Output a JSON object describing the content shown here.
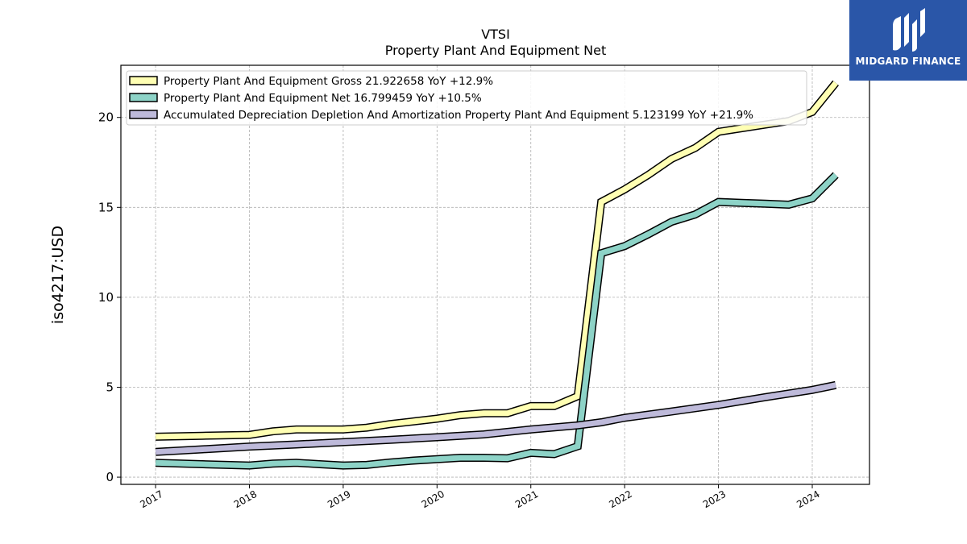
{
  "logo": {
    "text": "MIDGARD FINANCE",
    "icon": "midgard-logo-icon",
    "background": "#2a56a8"
  },
  "chart_data": {
    "type": "line",
    "title": "VTSI",
    "subtitle": "Property Plant And Equipment Net",
    "ylabel": "iso4217:USD",
    "xlabel": "",
    "ylim": [
      -0.4,
      22.9
    ],
    "xlim": [
      2016.63,
      2024.61
    ],
    "yticks": [
      0,
      5,
      10,
      15,
      20
    ],
    "xticks": [
      2017,
      2018,
      2019,
      2020,
      2021,
      2022,
      2023,
      2024
    ],
    "grid": true,
    "legend_position": "top-left",
    "series": [
      {
        "name": "Property Plant And Equipment Gross",
        "legend_label": "Property Plant And Equipment Gross  21.922658 YoY +12.9%",
        "color": "#ffffb3",
        "x": [
          2017.0,
          2017.5,
          2018.0,
          2018.25,
          2018.5,
          2018.75,
          2019.0,
          2019.25,
          2019.5,
          2019.75,
          2020.0,
          2020.25,
          2020.5,
          2020.75,
          2021.0,
          2021.25,
          2021.5,
          2021.75,
          2022.0,
          2022.25,
          2022.5,
          2022.75,
          2023.0,
          2023.25,
          2023.5,
          2023.75,
          2024.0,
          2024.25
        ],
        "values": [
          2.25,
          2.3,
          2.35,
          2.55,
          2.65,
          2.65,
          2.65,
          2.75,
          2.95,
          3.1,
          3.25,
          3.45,
          3.55,
          3.55,
          3.95,
          3.95,
          4.5,
          15.3,
          16.0,
          16.8,
          17.7,
          18.3,
          19.2,
          19.4,
          19.6,
          19.8,
          20.3,
          21.92
        ]
      },
      {
        "name": "Property Plant And Equipment Net",
        "legend_label": "Property Plant And Equipment Net  16.799459 YoY +10.5%",
        "color": "#8dd3c7",
        "x": [
          2017.0,
          2017.5,
          2018.0,
          2018.25,
          2018.5,
          2018.75,
          2019.0,
          2019.25,
          2019.5,
          2019.75,
          2020.0,
          2020.25,
          2020.5,
          2020.75,
          2021.0,
          2021.25,
          2021.5,
          2021.75,
          2022.0,
          2022.25,
          2022.5,
          2022.75,
          2023.0,
          2023.25,
          2023.5,
          2023.75,
          2024.0,
          2024.25
        ],
        "values": [
          0.8,
          0.72,
          0.65,
          0.75,
          0.8,
          0.72,
          0.65,
          0.68,
          0.82,
          0.92,
          1.0,
          1.08,
          1.08,
          1.05,
          1.35,
          1.28,
          1.72,
          12.45,
          12.85,
          13.5,
          14.2,
          14.6,
          15.3,
          15.25,
          15.2,
          15.15,
          15.5,
          16.8
        ]
      },
      {
        "name": "Accumulated Depreciation Depletion And Amortization Property Plant And Equipment",
        "legend_label": "Accumulated Depreciation Depletion And Amortization Property Plant And Equipment  5.123199 YoY +21.9%",
        "color": "#bebada",
        "x": [
          2017.0,
          2017.5,
          2018.0,
          2018.5,
          2019.0,
          2019.5,
          2020.0,
          2020.5,
          2021.0,
          2021.5,
          2021.75,
          2022.0,
          2022.5,
          2023.0,
          2023.5,
          2024.0,
          2024.25
        ],
        "values": [
          1.4,
          1.55,
          1.7,
          1.82,
          1.95,
          2.08,
          2.22,
          2.38,
          2.65,
          2.88,
          3.05,
          3.3,
          3.65,
          4.02,
          4.45,
          4.85,
          5.12
        ]
      }
    ]
  }
}
